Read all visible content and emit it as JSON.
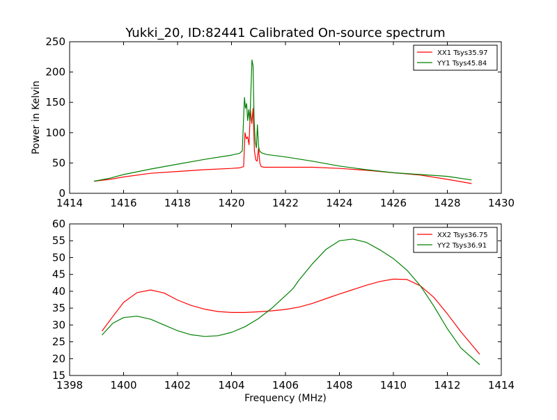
{
  "figure": {
    "title": "Yukki_20, ID:82441 Calibrated On-source spectrum"
  },
  "chart_data": [
    {
      "type": "line",
      "title": "Yukki_20, ID:82441 Calibrated On-source spectrum",
      "xlabel": "",
      "ylabel": "Power in Kelvin",
      "xlim": [
        1414,
        1430
      ],
      "ylim": [
        0,
        250
      ],
      "xticks": [
        1414,
        1416,
        1418,
        1420,
        1422,
        1424,
        1426,
        1428,
        1430
      ],
      "yticks": [
        0,
        50,
        100,
        150,
        200,
        250
      ],
      "grid": false,
      "legend_position": "top-right",
      "series": [
        {
          "name": "XX1 Tsys35.97",
          "color": "#ff0000",
          "x": [
            1414.9,
            1415.5,
            1416,
            1417,
            1418,
            1419,
            1420,
            1420.3,
            1420.45,
            1420.5,
            1420.55,
            1420.6,
            1420.65,
            1420.7,
            1420.75,
            1420.8,
            1420.85,
            1420.9,
            1420.95,
            1421.0,
            1421.05,
            1421.1,
            1421.2,
            1421.5,
            1422,
            1423,
            1424,
            1425,
            1426,
            1427,
            1428,
            1428.9
          ],
          "y": [
            20,
            23,
            27,
            33,
            36,
            39,
            41,
            42,
            44,
            100,
            90,
            93,
            80,
            138,
            115,
            140,
            70,
            55,
            53,
            74,
            50,
            44,
            43,
            43,
            43,
            43,
            41,
            38,
            34,
            30,
            23,
            16
          ]
        },
        {
          "name": "YY1 Tsys45.84",
          "color": "#008000",
          "x": [
            1414.9,
            1415.5,
            1416,
            1417,
            1418,
            1419,
            1420,
            1420.3,
            1420.4,
            1420.48,
            1420.52,
            1420.56,
            1420.6,
            1420.64,
            1420.68,
            1420.72,
            1420.76,
            1420.8,
            1420.84,
            1420.88,
            1420.92,
            1420.96,
            1421.0,
            1421.04,
            1421.08,
            1421.15,
            1421.3,
            1422,
            1423,
            1424,
            1425,
            1426,
            1427,
            1428,
            1428.9
          ],
          "y": [
            20,
            25,
            31,
            40,
            48,
            56,
            63,
            66,
            70,
            158,
            140,
            148,
            120,
            138,
            118,
            170,
            220,
            210,
            120,
            85,
            75,
            113,
            78,
            70,
            68,
            66,
            64,
            60,
            53,
            45,
            39,
            34,
            31,
            28,
            22
          ]
        }
      ]
    },
    {
      "type": "line",
      "title": "",
      "xlabel": "Frequency (MHz)",
      "ylabel": "",
      "xlim": [
        1398,
        1414
      ],
      "ylim": [
        15,
        60
      ],
      "xticks": [
        1398,
        1400,
        1402,
        1404,
        1406,
        1408,
        1410,
        1412,
        1414
      ],
      "yticks": [
        15,
        20,
        25,
        30,
        35,
        40,
        45,
        50,
        55,
        60
      ],
      "grid": false,
      "legend_position": "top-right",
      "series": [
        {
          "name": "XX2 Tsys36.75",
          "color": "#ff0000",
          "x": [
            1399.2,
            1399.6,
            1400,
            1400.5,
            1401,
            1401.5,
            1402,
            1402.5,
            1403,
            1403.5,
            1404,
            1404.5,
            1405,
            1405.5,
            1406,
            1406.5,
            1407,
            1407.5,
            1408,
            1408.5,
            1409,
            1409.5,
            1410,
            1410.5,
            1411,
            1411.5,
            1412,
            1412.5,
            1413.2
          ],
          "y": [
            28.2,
            32.5,
            36.7,
            39.6,
            40.4,
            39.5,
            37.4,
            35.8,
            34.7,
            34.0,
            33.7,
            33.7,
            33.9,
            34.2,
            34.6,
            35.3,
            36.4,
            37.8,
            39.2,
            40.5,
            41.8,
            42.9,
            43.6,
            43.5,
            41.6,
            38.2,
            33.3,
            28.0,
            21.3
          ]
        },
        {
          "name": "YY2 Tsys36.91",
          "color": "#008000",
          "x": [
            1399.2,
            1399.6,
            1400,
            1400.5,
            1401,
            1401.5,
            1402,
            1402.5,
            1403,
            1403.5,
            1404,
            1404.5,
            1405,
            1405.5,
            1406,
            1406.2,
            1406.3,
            1406.5,
            1407,
            1407.5,
            1408,
            1408.5,
            1409,
            1409.5,
            1410,
            1410.5,
            1411,
            1411.5,
            1412,
            1412.5,
            1413.2
          ],
          "y": [
            27.0,
            30.5,
            32.2,
            32.6,
            31.7,
            30.0,
            28.3,
            27.1,
            26.6,
            26.8,
            27.8,
            29.5,
            31.9,
            35.0,
            38.7,
            40.2,
            41.0,
            43.3,
            48.2,
            52.4,
            55.0,
            55.5,
            54.5,
            52.3,
            49.7,
            46.3,
            41.6,
            35.6,
            28.9,
            23.2,
            18.2
          ]
        }
      ]
    }
  ]
}
